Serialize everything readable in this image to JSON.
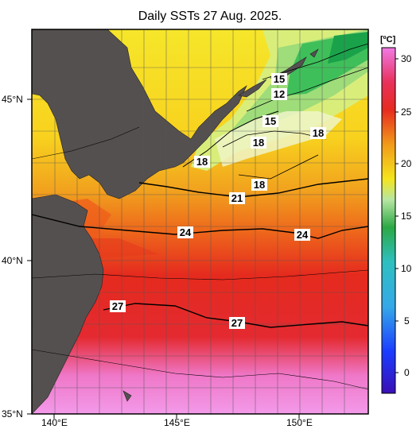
{
  "title": "Daily SSTs 27 Aug. 2025.",
  "map": {
    "latitude_labels": [
      "45°N",
      "40°N",
      "35°N"
    ],
    "longitude_labels": [
      "140°E",
      "145°E",
      "150°E"
    ],
    "isotherm_labels": [
      "15",
      "12",
      "15",
      "18",
      "18",
      "18",
      "18",
      "21",
      "24",
      "24",
      "27",
      "27"
    ]
  },
  "colorbar": {
    "unit": "[ºC]",
    "ticks": [
      "30",
      "25",
      "20",
      "15",
      "10",
      "5",
      "0"
    ],
    "colors": {
      "purple": "#3a0fb5",
      "blue": "#1b3cff",
      "cyan": "#35a8e8",
      "green": "#2ca845",
      "lightgreen": "#b7e6a2",
      "yellow": "#f4e51d",
      "orange": "#f29a1a",
      "red": "#e72b1f",
      "pink": "#f17ae6"
    }
  },
  "land_color": "#555050"
}
